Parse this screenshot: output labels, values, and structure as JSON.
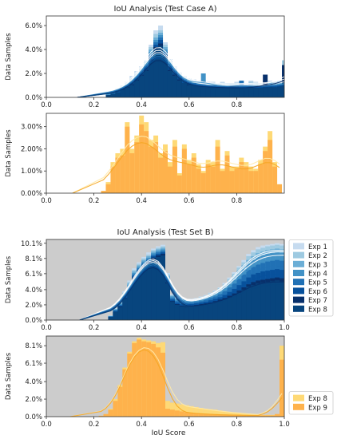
{
  "figure": {
    "xlabel_bottom": "IoU Score"
  },
  "chart_data": [
    {
      "type": "histogram",
      "title": "IoU Analysis (Test Case A)",
      "ylabel": "Data Samples",
      "xlim": [
        0,
        1
      ],
      "ylim": [
        0,
        6.8
      ],
      "xticks": [
        0.0,
        0.2,
        0.4,
        0.6,
        0.8
      ],
      "xtick_labels": [
        "0.0",
        "0.2",
        "0.4",
        "0.6",
        "0.8"
      ],
      "yticks": [
        0,
        2,
        4,
        6
      ],
      "ytick_labels": [
        "0.0%",
        "2.0%",
        "4.0%",
        "6.0%"
      ],
      "background": "#ffffff",
      "series": [
        {
          "name": "Exp 1",
          "color": "#c6dbef",
          "bin_start": 0.25,
          "bin_width": 0.02,
          "values": [
            0.4,
            0.6,
            0.8,
            1.0,
            1.3,
            1.8,
            2.2,
            2.6,
            3.1,
            4.4,
            5.6,
            6.0,
            4.6,
            3.2,
            2.6,
            2.1,
            1.8,
            1.6,
            1.5,
            1.4,
            1.4,
            1.3,
            1.3,
            1.2,
            1.3,
            1.2,
            1.2,
            1.3,
            1.2,
            1.2,
            1.4,
            1.3,
            1.2,
            1.3,
            1.4,
            1.3,
            1.4,
            2.2
          ]
        },
        {
          "name": "Exp 2",
          "color": "#9ecae1",
          "bin_start": 0.25,
          "bin_width": 0.02,
          "values": [
            0.3,
            0.5,
            0.7,
            1.0,
            1.2,
            1.6,
            2.0,
            2.4,
            3.0,
            4.2,
            5.3,
            5.6,
            4.4,
            3.0,
            2.4,
            2.0,
            1.7,
            1.5,
            1.4,
            1.3,
            1.3,
            1.2,
            1.2,
            1.1,
            1.2,
            1.1,
            1.1,
            1.2,
            1.1,
            1.1,
            1.3,
            1.2,
            1.1,
            1.2,
            1.3,
            1.2,
            1.3,
            3.1
          ]
        },
        {
          "name": "Exp 3",
          "color": "#6baed6",
          "bin_start": 0.25,
          "bin_width": 0.02,
          "values": [
            0.3,
            0.5,
            0.6,
            0.9,
            1.1,
            1.5,
            1.9,
            2.3,
            2.8,
            4.0,
            5.0,
            5.4,
            4.2,
            2.9,
            2.3,
            1.9,
            1.6,
            1.4,
            1.3,
            1.2,
            1.3,
            1.2,
            1.1,
            1.1,
            1.1,
            1.0,
            1.1,
            1.1,
            1.0,
            1.0,
            1.2,
            1.1,
            1.0,
            1.1,
            1.2,
            1.1,
            1.2,
            1.9
          ]
        },
        {
          "name": "Exp 4",
          "color": "#4292c6",
          "bin_start": 0.25,
          "bin_width": 0.02,
          "values": [
            0.3,
            0.4,
            0.6,
            0.8,
            1.0,
            1.4,
            1.8,
            2.2,
            2.7,
            3.8,
            4.8,
            5.2,
            4.0,
            2.8,
            2.2,
            1.8,
            1.5,
            1.3,
            1.2,
            1.2,
            2.0,
            1.1,
            1.1,
            1.0,
            1.0,
            1.0,
            1.0,
            1.0,
            1.0,
            1.0,
            1.1,
            1.0,
            1.0,
            1.0,
            1.1,
            1.0,
            1.1,
            1.6
          ]
        },
        {
          "name": "Exp 5",
          "color": "#2171b5",
          "bin_start": 0.25,
          "bin_width": 0.02,
          "values": [
            0.2,
            0.4,
            0.5,
            0.8,
            1.0,
            1.3,
            1.7,
            2.1,
            2.6,
            3.6,
            4.6,
            5.0,
            3.8,
            2.6,
            2.1,
            1.7,
            1.4,
            1.2,
            1.2,
            1.1,
            1.1,
            1.0,
            1.0,
            1.0,
            1.0,
            0.9,
            1.0,
            1.0,
            1.4,
            0.9,
            1.0,
            1.0,
            0.9,
            1.0,
            1.0,
            1.0,
            1.0,
            1.5
          ]
        },
        {
          "name": "Exp 6",
          "color": "#08519c",
          "bin_start": 0.25,
          "bin_width": 0.02,
          "values": [
            0.2,
            0.3,
            0.5,
            0.7,
            0.9,
            1.2,
            1.6,
            2.0,
            2.5,
            3.4,
            4.4,
            4.8,
            3.6,
            2.5,
            2.0,
            1.6,
            1.3,
            1.2,
            1.1,
            1.0,
            1.0,
            1.0,
            1.0,
            0.9,
            0.9,
            0.9,
            0.9,
            0.9,
            0.9,
            0.9,
            1.0,
            0.9,
            0.9,
            0.9,
            1.0,
            0.9,
            1.0,
            1.4
          ]
        },
        {
          "name": "Exp 7",
          "color": "#08306b",
          "bin_start": 0.25,
          "bin_width": 0.02,
          "values": [
            0.2,
            0.3,
            0.4,
            0.7,
            0.9,
            1.1,
            1.5,
            1.9,
            2.3,
            3.2,
            4.2,
            4.5,
            3.4,
            2.3,
            1.9,
            1.5,
            1.2,
            1.1,
            1.0,
            1.0,
            1.0,
            0.9,
            0.9,
            0.9,
            0.9,
            0.8,
            0.9,
            0.9,
            0.8,
            0.8,
            0.9,
            0.8,
            0.8,
            1.9,
            0.9,
            0.8,
            0.9,
            2.7
          ]
        },
        {
          "name": "Exp 8",
          "color": "#08457e",
          "bin_start": 0.25,
          "bin_width": 0.02,
          "values": [
            0.2,
            0.3,
            0.4,
            0.6,
            0.8,
            1.0,
            1.4,
            1.8,
            2.2,
            3.0,
            4.0,
            4.3,
            3.2,
            2.2,
            1.8,
            1.4,
            1.2,
            1.0,
            1.0,
            0.9,
            0.9,
            0.9,
            0.9,
            0.8,
            0.8,
            0.8,
            0.8,
            0.8,
            0.8,
            0.8,
            0.9,
            0.8,
            0.8,
            0.8,
            0.9,
            0.8,
            0.9,
            1.3
          ]
        }
      ]
    },
    {
      "type": "histogram",
      "title": "",
      "ylabel": "Data Samples",
      "xlim": [
        0,
        1
      ],
      "ylim": [
        0,
        3.6
      ],
      "xticks": [
        0.0,
        0.2,
        0.4,
        0.6,
        0.8
      ],
      "xtick_labels": [
        "0.0",
        "0.2",
        "0.4",
        "0.6",
        "0.8"
      ],
      "yticks": [
        0,
        1,
        2,
        3
      ],
      "ytick_labels": [
        "0.00%",
        "1.00%",
        "2.00%",
        "3.00%"
      ],
      "background": "#ffffff",
      "series": [
        {
          "name": "Exp 8",
          "color": "#fed976",
          "bin_start": 0.23,
          "bin_width": 0.02,
          "values": [
            0.1,
            0.5,
            1.4,
            1.8,
            2.0,
            3.2,
            2.0,
            2.6,
            3.5,
            3.2,
            2.4,
            2.6,
            1.8,
            2.2,
            1.4,
            2.4,
            0.9,
            2.2,
            1.5,
            1.8,
            1.3,
            1.0,
            1.5,
            1.4,
            2.4,
            1.1,
            1.9,
            1.2,
            1.2,
            1.6,
            1.4,
            1.2,
            1.1,
            1.5,
            2.1,
            2.8,
            1.4,
            0.4
          ]
        },
        {
          "name": "Exp 9",
          "color": "#feb24c",
          "bin_start": 0.23,
          "bin_width": 0.02,
          "values": [
            0.1,
            0.4,
            1.2,
            1.6,
            1.7,
            3.0,
            1.8,
            2.3,
            3.1,
            2.8,
            2.1,
            2.3,
            1.6,
            1.9,
            1.2,
            2.1,
            0.8,
            2.0,
            1.3,
            1.6,
            1.1,
            0.9,
            1.3,
            1.2,
            2.1,
            1.0,
            1.7,
            1.0,
            1.1,
            1.4,
            1.2,
            1.0,
            1.0,
            1.3,
            1.9,
            2.4,
            1.2,
            0.4
          ]
        }
      ]
    },
    {
      "type": "histogram",
      "title": "IoU Analysis (Test Set B)",
      "ylabel": "Data Samples",
      "xlim": [
        0,
        1
      ],
      "ylim": [
        0,
        10.6
      ],
      "xticks": [
        0.0,
        0.2,
        0.4,
        0.6,
        0.8,
        1.0
      ],
      "xtick_labels": [
        "0.0",
        "0.2",
        "0.4",
        "0.6",
        "0.8",
        "1.0"
      ],
      "yticks": [
        0,
        2,
        4,
        6.1,
        8.1,
        10.1
      ],
      "ytick_labels": [
        "0.0%",
        "2.0%",
        "4.0%",
        "6.1%",
        "8.1%",
        "10.1%"
      ],
      "background": "#cccccc",
      "series": [
        {
          "name": "Exp 1",
          "color": "#c6dbef",
          "bin_start": 0.26,
          "bin_width": 0.02,
          "values": [
            0.6,
            1.6,
            2.4,
            3.8,
            5.2,
            6.8,
            7.6,
            8.3,
            8.9,
            9.4,
            9.7,
            9.9,
            6.2,
            3.4,
            3.0,
            2.8,
            2.7,
            2.8,
            2.9,
            3.1,
            3.3,
            3.6,
            3.9,
            4.3,
            4.9,
            5.6,
            6.3,
            7.1,
            7.9,
            8.7,
            9.2,
            9.6,
            9.8,
            9.9,
            10.0,
            10.1,
            10.0,
            9.8
          ]
        },
        {
          "name": "Exp 2",
          "color": "#9ecae1",
          "bin_start": 0.26,
          "bin_width": 0.02,
          "values": [
            0.6,
            1.5,
            2.3,
            3.6,
            5.0,
            6.6,
            7.4,
            8.1,
            8.6,
            9.2,
            9.5,
            9.7,
            6.0,
            3.3,
            2.9,
            2.7,
            2.6,
            2.7,
            2.8,
            3.0,
            3.2,
            3.5,
            3.8,
            4.2,
            4.7,
            5.4,
            6.1,
            6.9,
            7.6,
            8.4,
            8.9,
            9.3,
            9.5,
            9.7,
            9.8,
            9.9,
            9.8,
            9.6
          ]
        },
        {
          "name": "Exp 3",
          "color": "#6baed6",
          "bin_start": 0.26,
          "bin_width": 0.02,
          "values": [
            0.5,
            1.4,
            2.2,
            3.5,
            4.8,
            6.4,
            7.2,
            7.9,
            8.4,
            9.0,
            9.3,
            9.5,
            5.8,
            3.2,
            2.8,
            2.6,
            2.5,
            2.6,
            2.7,
            2.9,
            3.1,
            3.3,
            3.6,
            4.0,
            4.5,
            5.1,
            5.8,
            6.5,
            7.2,
            7.9,
            8.4,
            8.8,
            9.0,
            9.2,
            9.3,
            9.4,
            9.3,
            9.1
          ]
        },
        {
          "name": "Exp 4",
          "color": "#4292c6",
          "bin_start": 0.26,
          "bin_width": 0.02,
          "values": [
            0.5,
            1.4,
            2.1,
            3.4,
            4.6,
            6.2,
            7.0,
            7.7,
            8.2,
            8.8,
            9.1,
            9.3,
            5.6,
            3.1,
            2.7,
            2.5,
            2.4,
            2.5,
            2.6,
            2.7,
            2.9,
            3.1,
            3.4,
            3.7,
            4.2,
            4.7,
            5.3,
            6.0,
            6.7,
            7.4,
            7.9,
            8.3,
            8.5,
            8.7,
            8.8,
            8.9,
            8.8,
            8.6
          ]
        },
        {
          "name": "Exp 5",
          "color": "#2171b5",
          "bin_start": 0.26,
          "bin_width": 0.02,
          "values": [
            0.5,
            1.3,
            2.0,
            3.2,
            4.4,
            6.0,
            6.8,
            7.5,
            8.0,
            8.6,
            8.9,
            9.1,
            5.4,
            2.9,
            2.5,
            2.3,
            2.2,
            2.3,
            2.4,
            2.5,
            2.7,
            2.9,
            3.1,
            3.4,
            3.8,
            4.3,
            4.8,
            5.4,
            6.0,
            6.6,
            7.0,
            7.3,
            7.5,
            7.7,
            7.8,
            7.9,
            7.8,
            7.6
          ]
        },
        {
          "name": "Exp 6",
          "color": "#08519c",
          "bin_start": 0.26,
          "bin_width": 0.02,
          "values": [
            0.4,
            1.2,
            1.9,
            3.1,
            4.3,
            5.8,
            6.6,
            7.3,
            7.8,
            8.4,
            8.7,
            8.9,
            5.2,
            2.7,
            2.3,
            2.1,
            2.0,
            2.1,
            2.2,
            2.3,
            2.4,
            2.6,
            2.8,
            3.0,
            3.3,
            3.7,
            4.1,
            4.6,
            5.1,
            5.6,
            6.0,
            6.2,
            6.4,
            6.5,
            6.6,
            6.7,
            6.6,
            6.4
          ]
        },
        {
          "name": "Exp 7",
          "color": "#08306b",
          "bin_start": 0.26,
          "bin_width": 0.02,
          "values": [
            0.4,
            1.1,
            1.8,
            2.9,
            4.1,
            5.6,
            6.4,
            7.1,
            7.6,
            8.2,
            8.5,
            8.7,
            5.0,
            2.5,
            2.1,
            1.9,
            1.8,
            1.9,
            2.0,
            2.1,
            2.2,
            2.3,
            2.5,
            2.7,
            2.9,
            3.2,
            3.5,
            3.9,
            4.3,
            4.7,
            5.0,
            5.2,
            5.3,
            5.4,
            5.5,
            5.6,
            5.5,
            5.3
          ]
        },
        {
          "name": "Exp 8",
          "color": "#08457e",
          "bin_start": 0.26,
          "bin_width": 0.02,
          "values": [
            0.4,
            1.1,
            1.7,
            2.8,
            4.0,
            5.4,
            6.2,
            6.9,
            7.4,
            8.0,
            8.3,
            8.5,
            4.8,
            2.4,
            2.0,
            1.8,
            1.7,
            1.8,
            1.9,
            2.0,
            2.1,
            2.2,
            2.4,
            2.5,
            2.7,
            3.0,
            3.3,
            3.6,
            4.0,
            4.4,
            4.6,
            4.8,
            4.9,
            5.0,
            5.1,
            5.2,
            5.1,
            4.9
          ]
        }
      ]
    },
    {
      "type": "histogram",
      "title": "",
      "ylabel": "Data Samples",
      "xlabel": "IoU Score",
      "xlim": [
        0,
        1
      ],
      "ylim": [
        0,
        9.2
      ],
      "xticks": [
        0.0,
        0.2,
        0.4,
        0.6,
        0.8,
        1.0
      ],
      "xtick_labels": [
        "0.0",
        "0.2",
        "0.4",
        "0.6",
        "0.8",
        "1.0"
      ],
      "yticks": [
        0,
        2,
        4,
        6.1,
        8.1
      ],
      "ytick_labels": [
        "0.0%",
        "2.0%",
        "4.0%",
        "6.1%",
        "8.1%"
      ],
      "background": "#cccccc",
      "series": [
        {
          "name": "Exp 8",
          "color": "#fed976",
          "bin_start": 0.22,
          "bin_width": 0.02,
          "values": [
            0.1,
            0.3,
            0.9,
            2.0,
            3.6,
            5.6,
            7.4,
            8.6,
            9.0,
            8.8,
            8.7,
            8.6,
            8.4,
            8.5,
            1.8,
            1.6,
            1.5,
            1.4,
            1.3,
            1.2,
            1.1,
            1.0,
            0.9,
            0.85,
            0.8,
            0.7,
            0.6,
            0.55,
            0.5,
            0.45,
            0.4,
            0.35,
            0.3,
            0.25,
            0.2,
            0.2,
            0.2,
            0.2,
            8.1
          ]
        },
        {
          "name": "Exp 9",
          "color": "#feb24c",
          "bin_start": 0.22,
          "bin_width": 0.02,
          "values": [
            0.1,
            0.3,
            0.8,
            1.8,
            3.4,
            5.4,
            7.2,
            8.4,
            8.8,
            8.6,
            8.5,
            8.3,
            7.9,
            7.3,
            0.9,
            0.8,
            0.7,
            0.6,
            0.5,
            0.45,
            0.4,
            0.35,
            0.3,
            0.3,
            0.25,
            0.25,
            0.2,
            0.2,
            0.2,
            0.2,
            0.15,
            0.15,
            0.15,
            0.15,
            0.15,
            0.15,
            0.15,
            0.3,
            6.5
          ]
        }
      ]
    }
  ],
  "legends": [
    {
      "entries": [
        {
          "label": "Exp 1",
          "color": "#c6dbef"
        },
        {
          "label": "Exp 2",
          "color": "#9ecae1"
        },
        {
          "label": "Exp 3",
          "color": "#6baed6"
        },
        {
          "label": "Exp 4",
          "color": "#4292c6"
        },
        {
          "label": "Exp 5",
          "color": "#2171b5"
        },
        {
          "label": "Exp 6",
          "color": "#08519c"
        },
        {
          "label": "Exp 7",
          "color": "#08306b"
        },
        {
          "label": "Exp 8",
          "color": "#08457e"
        }
      ]
    },
    {
      "entries": [
        {
          "label": "Exp 8",
          "color": "#fed976"
        },
        {
          "label": "Exp 9",
          "color": "#feb24c"
        }
      ]
    }
  ]
}
